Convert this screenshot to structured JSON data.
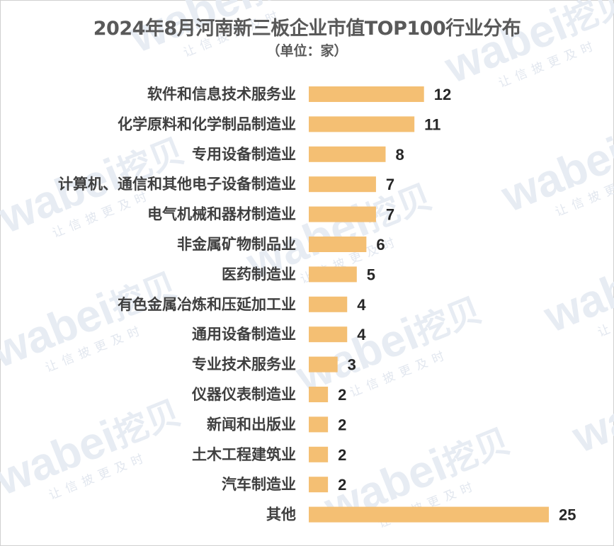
{
  "title": "2024年8月河南新三板企业市值TOP100行业分布",
  "subtitle": "（单位：家）",
  "watermark": {
    "brand": "wabei",
    "brand_cn": "挖贝",
    "slogan": "让信披更及时"
  },
  "colors": {
    "bar": "#f4bf73",
    "category_text": "#3f3f3f",
    "value_text": "#262626",
    "title_text": "#595959"
  },
  "chart_data": {
    "type": "bar",
    "orientation": "horizontal",
    "categories": [
      "软件和信息技术服务业",
      "化学原料和化学制品制造业",
      "专用设备制造业",
      "计算机、通信和其他电子设备制造业",
      "电气机械和器材制造业",
      "非金属矿物制品业",
      "医药制造业",
      "有色金属冶炼和压延加工业",
      "通用设备制造业",
      "专业技术服务业",
      "仪器仪表制造业",
      "新闻和出版业",
      "土木工程建筑业",
      "汽车制造业",
      "其他"
    ],
    "values": [
      12,
      11,
      8,
      7,
      7,
      6,
      5,
      4,
      4,
      3,
      2,
      2,
      2,
      2,
      25
    ],
    "title": "2024年8月河南新三板企业市值TOP100行业分布",
    "subtitle": "（单位：家）",
    "xlabel": "",
    "ylabel": "",
    "xlim": [
      0,
      25
    ],
    "grid": false,
    "legend": "none",
    "data_labels": true
  }
}
